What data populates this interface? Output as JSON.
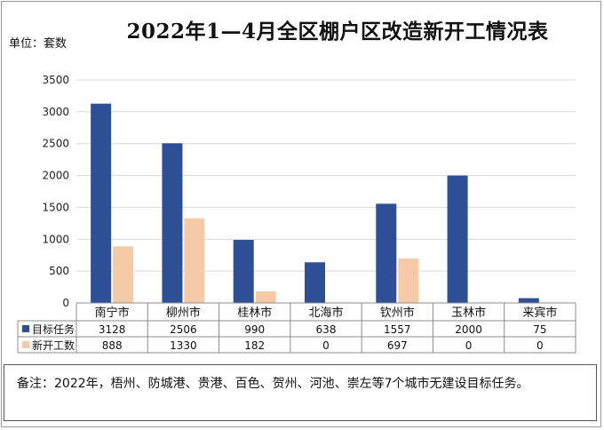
{
  "title": "2022年1—4月全区棚户区改造新开工情况表",
  "unit_label": "单位：套数",
  "note": "备注：2022年，梧州、防城港、贵港、百色、贺州、河池、崇左等7个城市无建设目标任务。",
  "colors": {
    "target": "#2e4f96",
    "new": "#f6c9a7",
    "grid": "#d9d9d9"
  },
  "chart_data": {
    "type": "bar",
    "categories": [
      "南宁市",
      "柳州市",
      "桂林市",
      "北海市",
      "钦州市",
      "玉林市",
      "来宾市"
    ],
    "series": [
      {
        "name": "目标任务",
        "values": [
          3128,
          2506,
          990,
          638,
          1557,
          2000,
          75
        ]
      },
      {
        "name": "新开工数",
        "values": [
          888,
          1330,
          182,
          0,
          697,
          0,
          0
        ]
      }
    ],
    "ylim": [
      0,
      3500
    ],
    "yticks": [
      0,
      500,
      1000,
      1500,
      2000,
      2500,
      3000,
      3500
    ],
    "grid": true,
    "legend": "data-table",
    "title": "2022年1—4月全区棚户区改造新开工情况表"
  }
}
